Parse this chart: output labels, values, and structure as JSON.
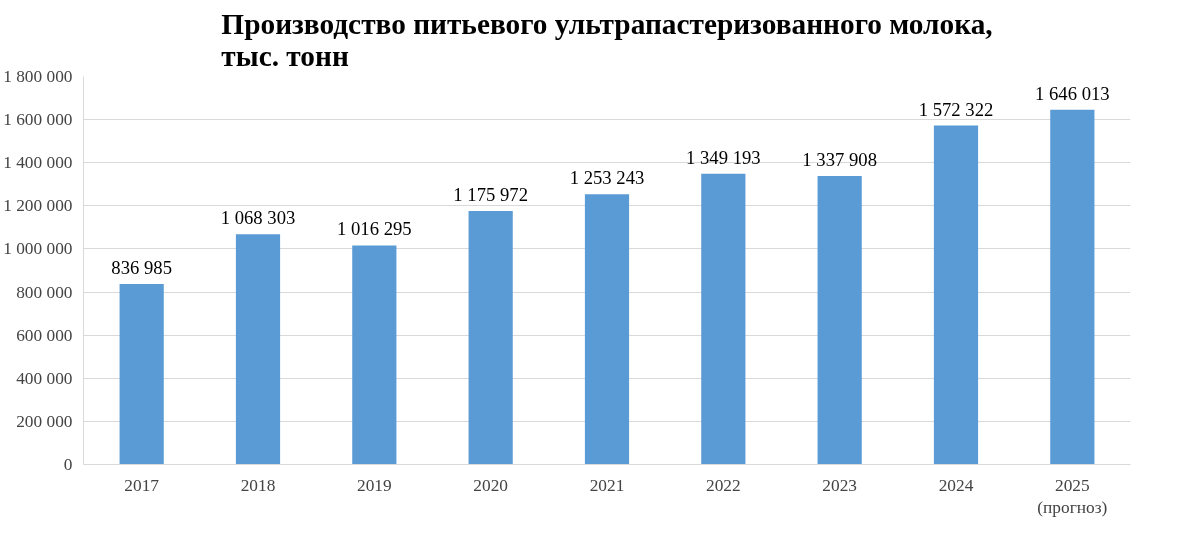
{
  "chart_data": {
    "type": "bar",
    "title": "Производство питьевого ультрапастеризованного молока,\nтыс. тонн",
    "categories": [
      "2017",
      "2018",
      "2019",
      "2020",
      "2021",
      "2022",
      "2023",
      "2024",
      "2025\n(прогноз)"
    ],
    "values": [
      836985,
      1068303,
      1016295,
      1175972,
      1253243,
      1349193,
      1337908,
      1572322,
      1646013
    ],
    "color": "#5b9bd5",
    "ylim": [
      0,
      1800000
    ],
    "yticks": [
      {
        "value": 0,
        "label": "0"
      },
      {
        "value": 200000,
        "label": "200 000"
      },
      {
        "value": 400000,
        "label": "400 000"
      },
      {
        "value": 600000,
        "label": "600 000"
      },
      {
        "value": 800000,
        "label": "800 000"
      },
      {
        "value": 1000000,
        "label": "1 000 000"
      },
      {
        "value": 1200000,
        "label": "1 200 000"
      },
      {
        "value": 1400000,
        "label": "1 400 000"
      },
      {
        "value": 1600000,
        "label": "1 600 000"
      },
      {
        "value": 1800000,
        "label": "1 800 000"
      }
    ],
    "grid": "y",
    "data_labels": true
  }
}
